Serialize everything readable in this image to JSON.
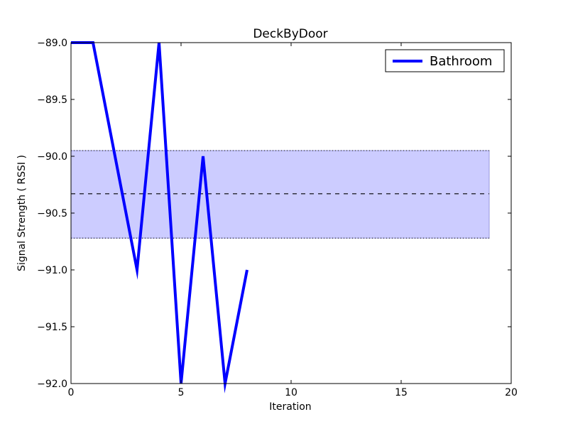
{
  "chart_data": {
    "type": "line",
    "title": "DeckByDoor",
    "xlabel": "Iteration",
    "ylabel": "Signal Strength  ( RSSI )",
    "xlim": [
      0,
      20
    ],
    "ylim": [
      -92.0,
      -89.0
    ],
    "x_ticks": [
      0,
      5,
      10,
      15,
      20
    ],
    "x_tick_labels": [
      "0",
      "5",
      "10",
      "15",
      "20"
    ],
    "y_ticks": [
      -89.0,
      -89.5,
      -90.0,
      -90.5,
      -91.0,
      -91.5,
      -92.0
    ],
    "y_tick_labels": [
      "−89.0",
      "−89.5",
      "−90.0",
      "−90.5",
      "−91.0",
      "−91.5",
      "−92.0"
    ],
    "grid": false,
    "legend_position": "top-right",
    "series": [
      {
        "name": "Bathroom",
        "color": "#0000ff",
        "x": [
          0,
          1,
          2,
          3,
          4,
          5,
          6,
          7,
          8
        ],
        "values": [
          -89,
          -89,
          -90,
          -91,
          -89,
          -92,
          -90,
          -92,
          -91
        ]
      }
    ],
    "band": {
      "x_range": [
        0,
        19
      ],
      "y_lower": -90.72,
      "y_upper": -89.95,
      "mean": -90.33,
      "fill_color": "#ccccff",
      "edge_color": "#9999dd"
    }
  }
}
